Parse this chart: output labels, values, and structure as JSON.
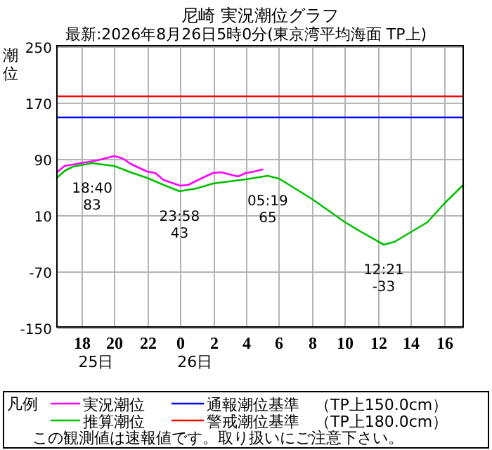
{
  "chart_data": {
    "type": "line",
    "title": "尼崎 実況潮位グラフ",
    "subtitle": "最新:2026年8月26日5時0分(東京湾平均海面 TP上)",
    "ylabel": "潮位",
    "legend_title": "凡例",
    "xlim": [
      "2026-08-25T16:32",
      "2026-08-26T17:10"
    ],
    "ylim": [
      -150,
      250
    ],
    "xticks": [
      {
        "value": "2026-08-25T18:00",
        "label": "18"
      },
      {
        "value": "2026-08-25T20:00",
        "label": "20"
      },
      {
        "value": "2026-08-25T22:00",
        "label": "22"
      },
      {
        "value": "2026-08-26T00:00",
        "label": "0"
      },
      {
        "value": "2026-08-26T02:00",
        "label": "2"
      },
      {
        "value": "2026-08-26T04:00",
        "label": "4"
      },
      {
        "value": "2026-08-26T06:00",
        "label": "6"
      },
      {
        "value": "2026-08-26T08:00",
        "label": "8"
      },
      {
        "value": "2026-08-26T10:00",
        "label": "10"
      },
      {
        "value": "2026-08-26T12:00",
        "label": "12"
      },
      {
        "value": "2026-08-26T14:00",
        "label": "14"
      },
      {
        "value": "2026-08-26T16:00",
        "label": "16"
      }
    ],
    "yticks": [
      250,
      170,
      90,
      10,
      -70,
      -150
    ],
    "grid": true,
    "legend": "bottom",
    "marker": "none",
    "line_style": "solid",
    "series": [
      {
        "name": "実況潮位",
        "color": "#ff00ff",
        "x": [
          "2026-08-25T16:32",
          "2026-08-25T17:00",
          "2026-08-25T18:00",
          "2026-08-25T19:00",
          "2026-08-25T19:30",
          "2026-08-25T20:00",
          "2026-08-25T20:30",
          "2026-08-25T21:00",
          "2026-08-25T22:00",
          "2026-08-25T22:30",
          "2026-08-25T23:00",
          "2026-08-25T23:30",
          "2026-08-26T00:00",
          "2026-08-26T00:30",
          "2026-08-26T01:00",
          "2026-08-26T02:00",
          "2026-08-26T02:30",
          "2026-08-26T03:00",
          "2026-08-26T03:30",
          "2026-08-26T04:00",
          "2026-08-26T04:30",
          "2026-08-26T05:00"
        ],
        "values": [
          70,
          79,
          83,
          87,
          90,
          93,
          90,
          82,
          71,
          69,
          59,
          55,
          51,
          52,
          58,
          69,
          70,
          67,
          64,
          69,
          71,
          74
        ]
      },
      {
        "name": "推算潮位",
        "color": "#00c000",
        "x": [
          "2026-08-25T16:32",
          "2026-08-25T17:00",
          "2026-08-25T17:30",
          "2026-08-25T18:40",
          "2026-08-25T20:00",
          "2026-08-25T21:00",
          "2026-08-25T22:00",
          "2026-08-25T23:00",
          "2026-08-25T23:58",
          "2026-08-26T01:00",
          "2026-08-26T02:00",
          "2026-08-26T03:00",
          "2026-08-26T04:00",
          "2026-08-26T05:19",
          "2026-08-26T06:00",
          "2026-08-26T08:00",
          "2026-08-26T10:00",
          "2026-08-26T11:00",
          "2026-08-26T12:21",
          "2026-08-26T13:00",
          "2026-08-26T14:00",
          "2026-08-26T15:00",
          "2026-08-26T16:00",
          "2026-08-26T17:10"
        ],
        "values": [
          62,
          72,
          78,
          83,
          79,
          70,
          62,
          52,
          43,
          47,
          54,
          57,
          60,
          65,
          61,
          32,
          -1,
          -15,
          -33,
          -29,
          -15,
          -1,
          25,
          52
        ]
      }
    ],
    "ref_lines": [
      {
        "axis": "y",
        "value": 150,
        "label": "通報潮位基準　（TP上150.0cm）",
        "color": "#0000ff"
      },
      {
        "axis": "y",
        "value": 180,
        "label": "警戒潮位基準　（TP上180.0cm）",
        "color": "#ff0000"
      }
    ],
    "annotations": [
      "25日",
      "26日",
      {
        "text": "18:40\n83",
        "x": "2026-08-25T18:40",
        "y": 83
      },
      {
        "text": "23:58\n43",
        "x": "2026-08-25T23:58",
        "y": 43
      },
      {
        "text": "05:19\n65",
        "x": "2026-08-26T05:19",
        "y": 65
      },
      {
        "text": "12:21\n-33",
        "x": "2026-08-26T12:21",
        "y": -33
      },
      "この観測値は速報値です。取り扱いにご注意下さい。"
    ]
  }
}
